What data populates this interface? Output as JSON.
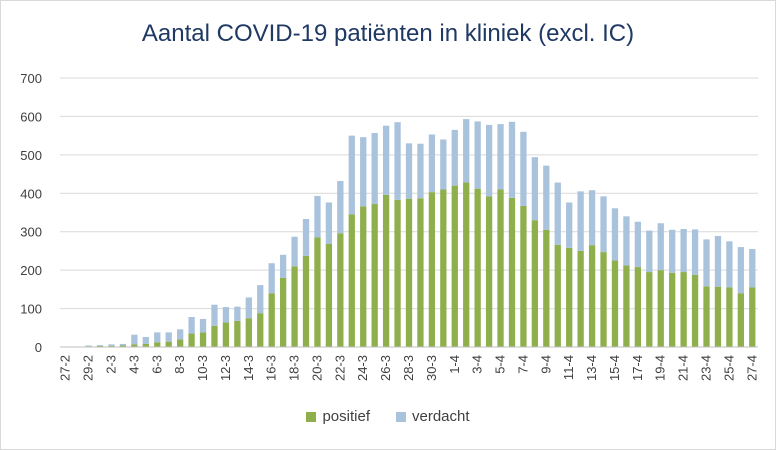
{
  "chart_data": {
    "type": "bar",
    "stacked": true,
    "title": "Aantal COVID-19 patiënten in kliniek (excl. IC)",
    "xlabel": "",
    "ylabel": "",
    "ylim": [
      0,
      700
    ],
    "yticks": [
      0,
      100,
      200,
      300,
      400,
      500,
      600,
      700
    ],
    "grid": true,
    "legend_position": "bottom",
    "categories": [
      "27-2",
      "28-2",
      "29-2",
      "1-3",
      "2-3",
      "3-3",
      "4-3",
      "5-3",
      "6-3",
      "7-3",
      "8-3",
      "9-3",
      "10-3",
      "11-3",
      "12-3",
      "13-3",
      "14-3",
      "15-3",
      "16-3",
      "17-3",
      "18-3",
      "19-3",
      "20-3",
      "21-3",
      "22-3",
      "23-3",
      "24-3",
      "25-3",
      "26-3",
      "27-3",
      "28-3",
      "29-3",
      "30-3",
      "31-3",
      "1-4",
      "2-4",
      "3-4",
      "4-4",
      "5-4",
      "6-4",
      "7-4",
      "8-4",
      "9-4",
      "10-4",
      "11-4",
      "12-4",
      "13-4",
      "14-4",
      "15-4",
      "16-4",
      "17-4",
      "18-4",
      "19-4",
      "20-4",
      "21-4",
      "22-4",
      "23-4",
      "24-4",
      "25-4",
      "26-4",
      "27-4"
    ],
    "tick_labels": [
      "27-2",
      "29-2",
      "2-3",
      "4-3",
      "6-3",
      "8-3",
      "10-3",
      "12-3",
      "14-3",
      "16-3",
      "18-3",
      "20-3",
      "22-3",
      "24-3",
      "26-3",
      "28-3",
      "30-3",
      "1-4",
      "3-4",
      "5-4",
      "7-4",
      "9-4",
      "11-4",
      "13-4",
      "15-4",
      "17-4",
      "19-4",
      "21-4",
      "23-4",
      "25-4",
      "27-4"
    ],
    "series": [
      {
        "name": "positief",
        "color": "#8faf4c",
        "values": [
          0,
          0,
          2,
          3,
          3,
          4,
          7,
          8,
          12,
          14,
          20,
          35,
          38,
          55,
          64,
          68,
          75,
          88,
          140,
          180,
          210,
          237,
          285,
          268,
          296,
          345,
          366,
          372,
          396,
          383,
          386,
          387,
          403,
          410,
          420,
          428,
          412,
          392,
          410,
          388,
          367,
          330,
          305,
          266,
          258,
          250,
          265,
          247,
          225,
          212,
          208,
          195,
          200,
          193,
          195,
          188,
          158,
          157,
          155,
          140,
          155
        ]
      },
      {
        "name": "verdacht",
        "color": "#a9c3dc",
        "values": [
          0,
          0,
          2,
          2,
          4,
          4,
          25,
          18,
          26,
          24,
          26,
          43,
          35,
          55,
          40,
          37,
          54,
          73,
          78,
          60,
          77,
          96,
          108,
          108,
          136,
          205,
          180,
          185,
          180,
          202,
          144,
          142,
          150,
          130,
          145,
          165,
          175,
          186,
          170,
          198,
          193,
          164,
          167,
          162,
          118,
          155,
          143,
          145,
          136,
          128,
          118,
          108,
          122,
          112,
          112,
          118,
          122,
          132,
          120,
          120,
          100
        ]
      }
    ]
  },
  "legend": {
    "positief": "positief",
    "verdacht": "verdacht"
  }
}
